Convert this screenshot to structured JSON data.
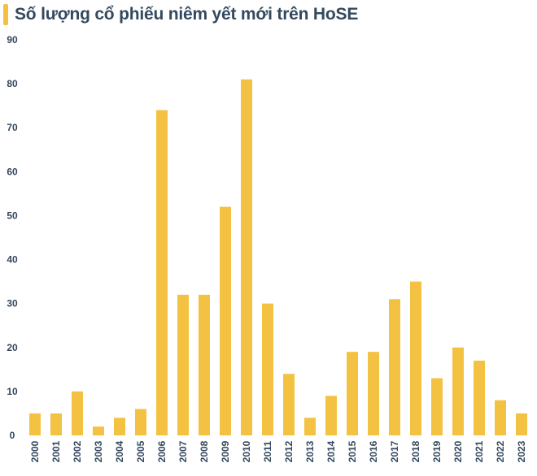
{
  "chart_data": {
    "type": "bar",
    "title": "Số lượng cổ phiếu niêm yết mới trên HoSE",
    "categories": [
      "2000",
      "2001",
      "2002",
      "2003",
      "2004",
      "2005",
      "2006",
      "2007",
      "2008",
      "2009",
      "2010",
      "2011",
      "2012",
      "2013",
      "2014",
      "2015",
      "2016",
      "2017",
      "2018",
      "2019",
      "2020",
      "2021",
      "2022",
      "2023"
    ],
    "values": [
      5,
      5,
      10,
      2,
      4,
      6,
      74,
      32,
      32,
      52,
      81,
      30,
      14,
      4,
      9,
      19,
      19,
      31,
      35,
      13,
      20,
      17,
      8,
      5
    ],
    "ylim": [
      0,
      90
    ],
    "yticks": [
      0,
      10,
      20,
      30,
      40,
      50,
      60,
      70,
      80,
      90
    ],
    "xlabel": "",
    "ylabel": "",
    "grid": false,
    "bar_color": "#f4c242",
    "accent_color": "#f4c242"
  }
}
